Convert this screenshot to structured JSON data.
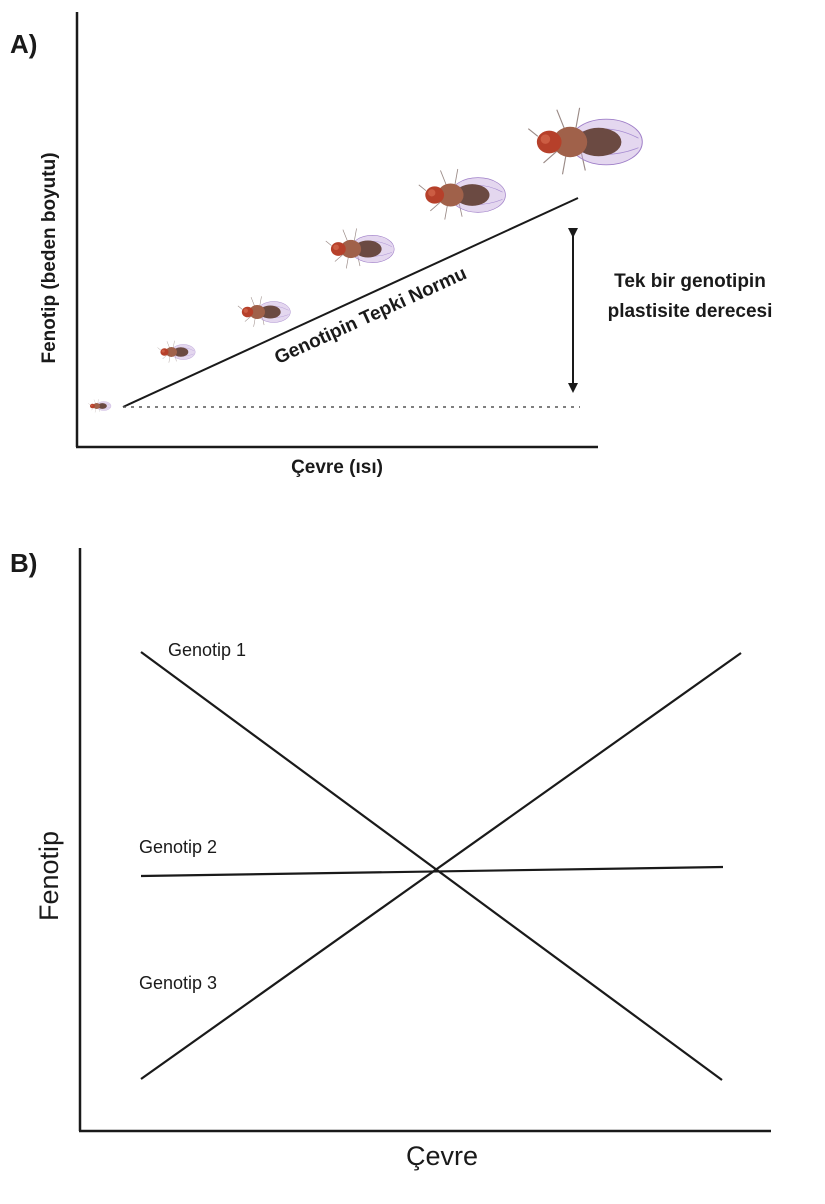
{
  "panel_a": {
    "letter": "A)",
    "ylabel": "Fenotip (beden boyutu)",
    "xlabel": "Çevre (ısı)",
    "line_label": "Genotipin Tepki Normu",
    "plasticity_label_line1": "Tek bir genotipin",
    "plasticity_label_line2": "plastisite derecesi",
    "flies": [
      {
        "size": 0.2
      },
      {
        "size": 0.33
      },
      {
        "size": 0.46
      },
      {
        "size": 0.6
      },
      {
        "size": 0.76
      },
      {
        "size": 1.0
      }
    ]
  },
  "panel_b": {
    "letter": "B)",
    "ylabel": "Fenotip",
    "xlabel": "Çevre",
    "genotypes": [
      {
        "label": "Genotip 1",
        "trend": "decreasing"
      },
      {
        "label": "Genotip 2",
        "trend": "flat"
      },
      {
        "label": "Genotip 3",
        "trend": "increasing"
      }
    ]
  },
  "colors": {
    "ink": "#1a1a1a",
    "fly_body": "#a0614a",
    "fly_wing": "#c4a6dc",
    "fly_eye": "#b6402a"
  }
}
